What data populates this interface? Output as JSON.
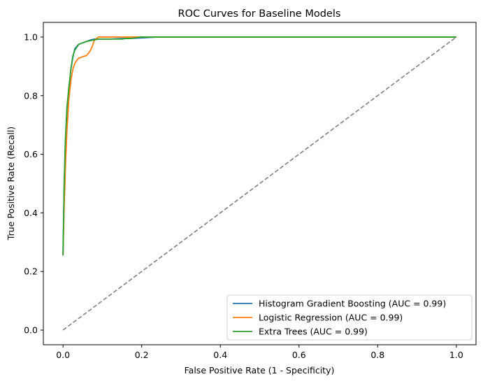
{
  "chart_data": {
    "type": "line",
    "title": "ROC Curves for Baseline Models",
    "xlabel": "False Positive Rate (1 - Specificity)",
    "ylabel": "True Positive Rate (Recall)",
    "xlim": [
      -0.05,
      1.05
    ],
    "ylim": [
      -0.05,
      1.05
    ],
    "xticks": [
      "0.0",
      "0.2",
      "0.4",
      "0.6",
      "0.8",
      "1.0"
    ],
    "yticks": [
      "0.0",
      "0.2",
      "0.4",
      "0.6",
      "0.8",
      "1.0"
    ],
    "grid": false,
    "legend_position": "lower-right",
    "series": [
      {
        "name": "Histogram Gradient Boosting (AUC = 0.99)",
        "color": "#1f77b4",
        "x": [
          0.0,
          0.003,
          0.006,
          0.01,
          0.015,
          0.02,
          0.025,
          0.03,
          0.035,
          0.04,
          0.05,
          0.06,
          0.07,
          0.08,
          0.09,
          0.12,
          0.15,
          0.17,
          0.2,
          0.24,
          0.3,
          0.5,
          1.0
        ],
        "y": [
          0.255,
          0.5,
          0.63,
          0.75,
          0.82,
          0.89,
          0.93,
          0.96,
          0.968,
          0.975,
          0.98,
          0.985,
          0.99,
          0.993,
          0.993,
          0.993,
          0.995,
          0.995,
          0.997,
          1.0,
          1.0,
          1.0,
          1.0
        ]
      },
      {
        "name": "Logistic Regression (AUC = 0.99)",
        "color": "#ff7f0e",
        "x": [
          0.0,
          0.003,
          0.006,
          0.01,
          0.015,
          0.02,
          0.025,
          0.03,
          0.035,
          0.04,
          0.045,
          0.05,
          0.055,
          0.06,
          0.065,
          0.07,
          0.075,
          0.08,
          0.085,
          0.09,
          0.1,
          0.15,
          0.2,
          0.3,
          1.0
        ],
        "y": [
          0.255,
          0.42,
          0.55,
          0.68,
          0.79,
          0.85,
          0.89,
          0.91,
          0.92,
          0.928,
          0.93,
          0.933,
          0.935,
          0.937,
          0.945,
          0.955,
          0.97,
          0.99,
          0.995,
          1.0,
          1.0,
          1.0,
          1.0,
          1.0,
          1.0
        ]
      },
      {
        "name": "Extra Trees (AUC = 0.99)",
        "color": "#2ca02c",
        "x": [
          0.0,
          0.003,
          0.006,
          0.01,
          0.015,
          0.02,
          0.025,
          0.03,
          0.035,
          0.04,
          0.05,
          0.06,
          0.07,
          0.08,
          0.09,
          0.12,
          0.15,
          0.16,
          0.17,
          0.19,
          0.2,
          0.24,
          0.3,
          0.5,
          1.0
        ],
        "y": [
          0.255,
          0.5,
          0.65,
          0.76,
          0.83,
          0.89,
          0.935,
          0.955,
          0.965,
          0.975,
          0.98,
          0.985,
          0.988,
          0.99,
          0.993,
          0.993,
          0.993,
          0.995,
          0.995,
          0.998,
          1.0,
          1.0,
          1.0,
          1.0,
          1.0
        ]
      }
    ],
    "reference_line": {
      "style": "dashed",
      "color": "#808080",
      "x": [
        0,
        1
      ],
      "y": [
        0,
        1
      ]
    }
  }
}
